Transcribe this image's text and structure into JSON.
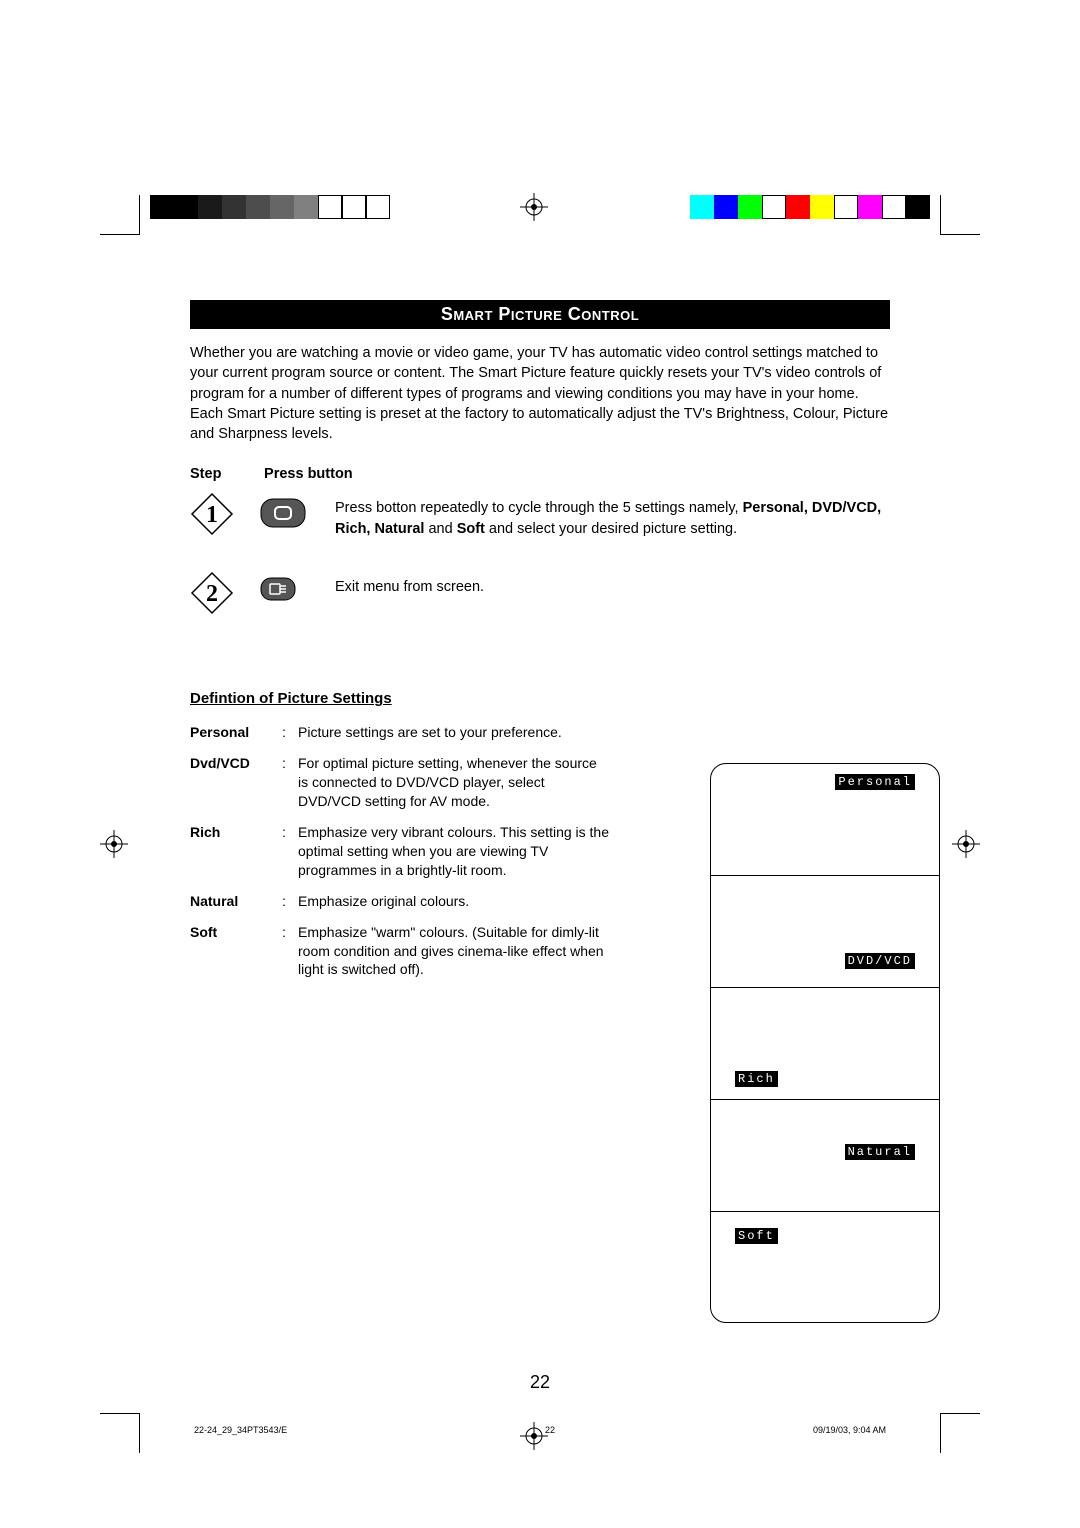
{
  "title": "Smart Picture Control",
  "intro": "Whether you are watching a movie or video game, your TV has automatic video control settings matched to your current program source or content. The Smart Picture feature quickly resets your TV's video controls of program for a number of different types of programs and viewing conditions you may have in your home. Each Smart Picture setting is preset at the factory to automatically adjust the TV's Brightness, Colour, Picture and Sharpness levels.",
  "stepHeader": {
    "step": "Step",
    "press": "Press button"
  },
  "steps": [
    {
      "num": "1",
      "text_before": "Press botton repeatedly to cycle through the 5 settings namely, ",
      "bold": "Personal, DVD/VCD, Rich, Natural",
      "mid": " and ",
      "bold2": "Soft",
      "text_after": " and select your desired picture setting."
    },
    {
      "num": "2",
      "text": "Exit menu from screen."
    }
  ],
  "defsTitle": "Defintion of Picture Settings",
  "definitions": [
    {
      "term": "Personal",
      "desc": "Picture settings are set to your preference."
    },
    {
      "term": "Dvd/VCD",
      "desc": "For optimal picture setting, whenever the source is connected to DVD/VCD player, select DVD/VCD setting for AV mode."
    },
    {
      "term": "Rich",
      "desc": "Emphasize very vibrant colours. This setting is the optimal setting when you are viewing TV programmes in a brightly-lit room."
    },
    {
      "term": "Natural",
      "desc": "Emphasize original colours."
    },
    {
      "term": "Soft",
      "desc": "Emphasize \"warm\" colours. (Suitable for dimly-lit room condition and gives cinema-like effect when light is switched off)."
    }
  ],
  "tvTags": [
    "Personal",
    "DVD/VCD",
    "Rich",
    "Natural",
    "Soft"
  ],
  "pageNumber": "22",
  "footer": {
    "left": "22-24_29_34PT3543/E",
    "mid": "22",
    "right": "09/19/03, 9:04 AM"
  },
  "graySwatches": [
    "#000000",
    "#000000",
    "#1a1a1a",
    "#333333",
    "#4d4d4d",
    "#666666",
    "#808080",
    "#ffffff",
    "#ffffff",
    "#ffffff"
  ],
  "colorSwatches": [
    "#00ffff",
    "#0000ff",
    "#00ff00",
    "#ffffff",
    "#ff0000",
    "#ffff00",
    "#ffffff",
    "#ff00ff",
    "#ffffff",
    "#000000"
  ]
}
